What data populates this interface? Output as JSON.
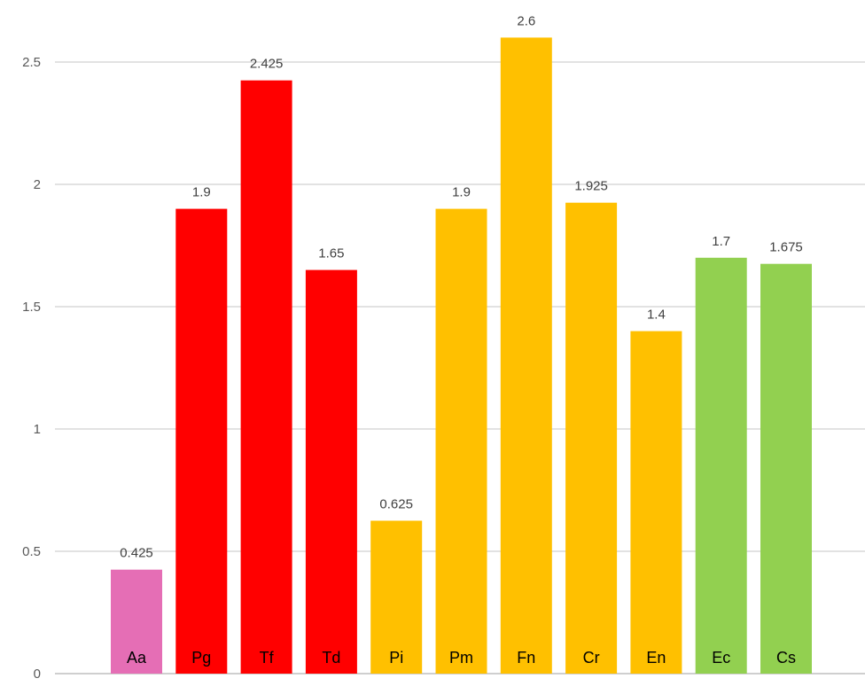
{
  "chart_data": {
    "type": "bar",
    "title": "",
    "xlabel": "",
    "ylabel": "",
    "ylim": [
      0,
      2.6
    ],
    "yticks": [
      "0",
      "0.5",
      "1",
      "1.5",
      "2",
      "2.5"
    ],
    "grid": true,
    "categories": [
      "Aa",
      "Pg",
      "Tf",
      "Td",
      "Pi",
      "Pm",
      "Fn",
      "Cr",
      "En",
      "Ec",
      "Cs"
    ],
    "values": [
      0.425,
      1.9,
      2.425,
      1.65,
      0.625,
      1.9,
      2.6,
      1.925,
      1.4,
      1.7,
      1.675
    ],
    "value_labels": [
      "0.425",
      "1.9",
      "2.425",
      "1.65",
      "0.625",
      "1.9",
      "2.6",
      "1.925",
      "1.4",
      "1.7",
      "1.675"
    ],
    "bar_colors": [
      "#E56EB5",
      "#FF0000",
      "#FF0000",
      "#FF0000",
      "#FFC000",
      "#FFC000",
      "#FFC000",
      "#FFC000",
      "#FFC000",
      "#92D050",
      "#92D050"
    ]
  }
}
